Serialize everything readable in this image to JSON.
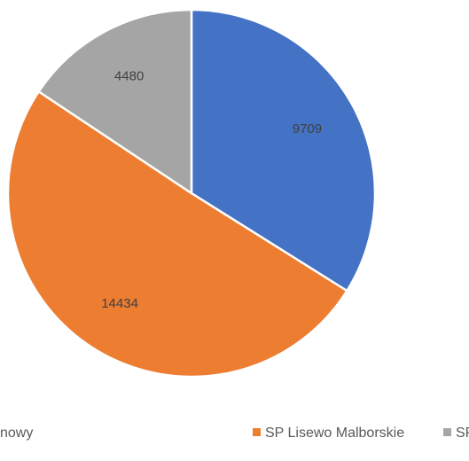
{
  "chart_data": {
    "type": "pie",
    "categories": [
      "nowy",
      "SP Lisewo Malborskie",
      "SP Szymankowo"
    ],
    "values": [
      9709,
      14434,
      4480
    ],
    "colors": [
      "#4472c4",
      "#ed7d31",
      "#a5a5a5"
    ]
  }
}
